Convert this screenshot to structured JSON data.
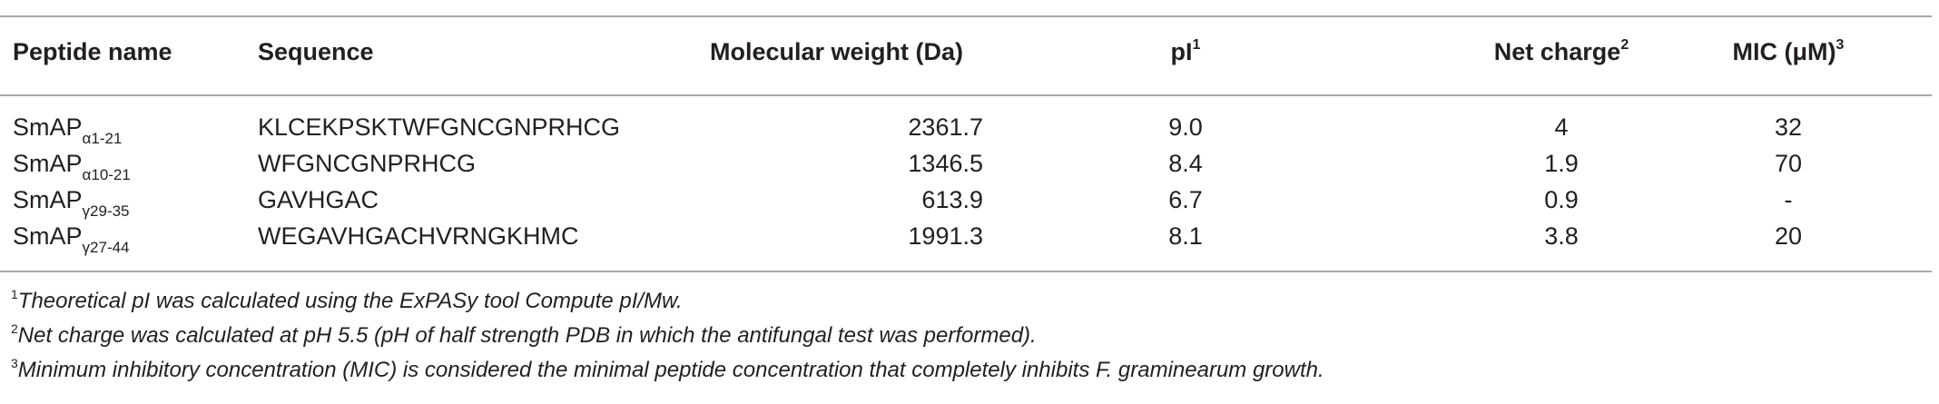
{
  "table": {
    "headers": {
      "peptide_name": "Peptide name",
      "sequence": "Sequence",
      "molecular_weight": "Molecular weight (Da)",
      "pi": "pI",
      "pi_note": "1",
      "net_charge": "Net charge",
      "net_charge_note": "2",
      "mic": "MIC (μM)",
      "mic_note": "3"
    },
    "rows": [
      {
        "name_base": "SmAP",
        "name_sub": "α1-21",
        "sequence": "KLCEKPSKTWFGNCGNPRHCG",
        "molecular_weight": "2361.7",
        "pi": "9.0",
        "net_charge": "4",
        "mic": "32"
      },
      {
        "name_base": "SmAP",
        "name_sub": "α10-21",
        "sequence": "WFGNCGNPRHCG",
        "molecular_weight": "1346.5",
        "pi": "8.4",
        "net_charge": "1.9",
        "mic": "70"
      },
      {
        "name_base": "SmAP",
        "name_sub": "γ29-35",
        "sequence": "GAVHGAC",
        "molecular_weight": "613.9",
        "pi": "6.7",
        "net_charge": "0.9",
        "mic": "-"
      },
      {
        "name_base": "SmAP",
        "name_sub": "γ27-44",
        "sequence": "WEGAVHGACHVRNGKHMC",
        "molecular_weight": "1991.3",
        "pi": "8.1",
        "net_charge": "3.8",
        "mic": "20"
      }
    ]
  },
  "footnotes": [
    {
      "mark": "1",
      "text": "Theoretical pI was calculated using the ExPASy tool Compute pI/Mw."
    },
    {
      "mark": "2",
      "text": "Net charge was calculated at pH 5.5 (pH of half strength PDB in which the antifungal test was performed)."
    },
    {
      "mark": "3",
      "text": "Minimum inhibitory concentration (MIC) is considered the minimal peptide concentration that completely inhibits F. graminearum growth."
    }
  ]
}
